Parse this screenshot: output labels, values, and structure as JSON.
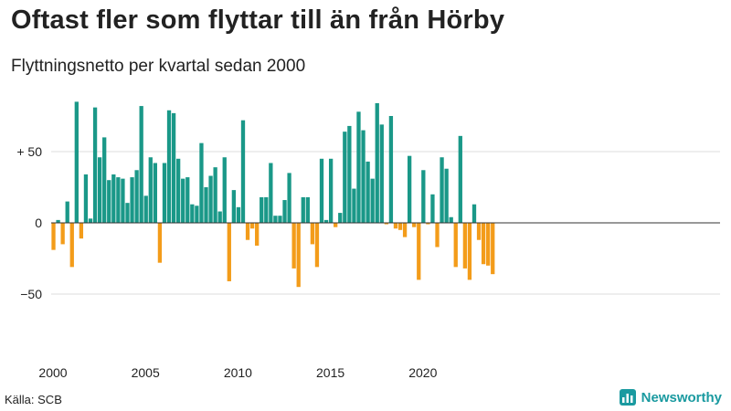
{
  "title": "Oftast fler som flyttar till än från Hörby",
  "subtitle": "Flyttningsnetto per kvartal sedan 2000",
  "source": "Källa: SCB",
  "brand": "Newsworthy",
  "colors": {
    "positive": "#1a9888",
    "negative": "#f39c1a",
    "grid": "#dddddd",
    "zero": "#333333",
    "brand": "#1a9aa0"
  },
  "chart_data": {
    "type": "bar",
    "title": "Oftast fler som flyttar till än från Hörby",
    "subtitle": "Flyttningsnetto per kvartal sedan 2000",
    "xlabel": "",
    "ylabel": "",
    "ylim": [
      -100,
      90
    ],
    "y_ticks": [
      50,
      0,
      -50
    ],
    "y_tick_labels": [
      "+ 50",
      "0",
      "−50"
    ],
    "x_ticks": [
      2000,
      2005,
      2010,
      2015,
      2020
    ],
    "x_tick_labels": [
      "2000",
      "2005",
      "2010",
      "2015",
      "2020"
    ],
    "start_year": 2000,
    "start_quarter": 1,
    "values": [
      -19,
      2,
      -15,
      15,
      -31,
      85,
      -11,
      34,
      3,
      81,
      46,
      60,
      30,
      34,
      32,
      31,
      14,
      32,
      37,
      82,
      19,
      46,
      42,
      -28,
      42,
      79,
      77,
      45,
      31,
      32,
      13,
      12,
      56,
      25,
      33,
      39,
      8,
      46,
      -41,
      23,
      11,
      72,
      -12,
      -4,
      -16,
      18,
      18,
      42,
      5,
      5,
      16,
      35,
      -32,
      -45,
      18,
      18,
      -15,
      -31,
      45,
      2,
      45,
      -3,
      7,
      64,
      68,
      24,
      78,
      65,
      43,
      31,
      84,
      69,
      -1,
      75,
      -4,
      -5,
      -10,
      47,
      -3,
      -40,
      37,
      -1,
      20,
      -17,
      46,
      38,
      4,
      -31,
      61,
      -32,
      -40,
      13,
      -12,
      -29,
      -30,
      -36
    ]
  }
}
